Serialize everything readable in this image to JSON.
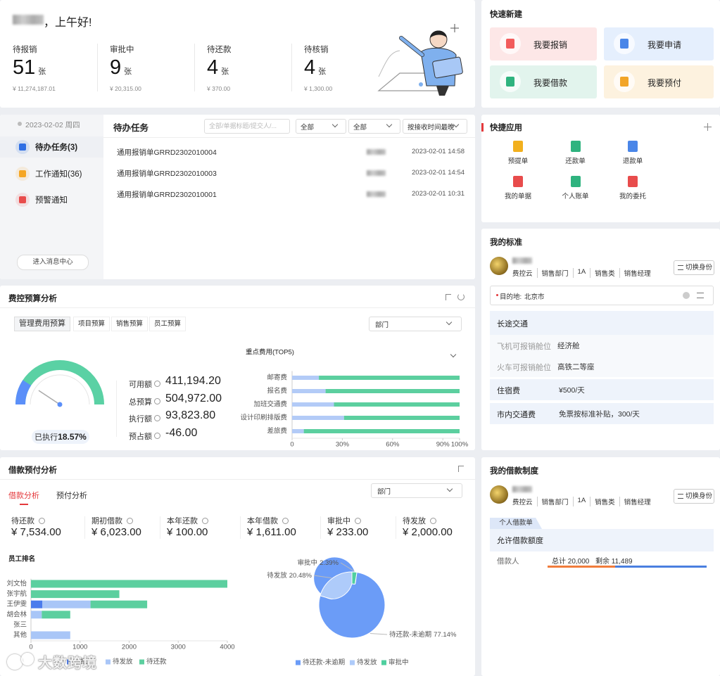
{
  "greeting": "，上午好!",
  "summary": [
    {
      "label": "待报销",
      "count": 51,
      "unit": "张",
      "amount": "¥ 11,274,187.01"
    },
    {
      "label": "审批中",
      "count": 9,
      "unit": "张",
      "amount": "¥ 20,315.00"
    },
    {
      "label": "待还款",
      "count": 4,
      "unit": "张",
      "amount": "¥ 370.00"
    },
    {
      "label": "待核销",
      "count": 4,
      "unit": "张",
      "amount": "¥ 1,300.00"
    }
  ],
  "quick_create": {
    "title": "快速新建",
    "items": [
      "我要报销",
      "我要申请",
      "我要借款",
      "我要预付"
    ]
  },
  "messages": {
    "date": "2023-02-02 周四",
    "tabs": [
      "待办任务(3)",
      "工作通知(36)",
      "预警通知"
    ],
    "button": "进入消息中心",
    "title": "待办任务",
    "search": "全部/单据标题/提交人/...",
    "filters": [
      "全部",
      "全部",
      "按接收时间最晚"
    ],
    "rows": [
      {
        "title": "通用报销单GRRD2302010004",
        "time": "2023-02-01 14:58"
      },
      {
        "title": "通用报销单GRRD2302010003",
        "time": "2023-02-01 14:54"
      },
      {
        "title": "通用报销单GRRD2302010001",
        "time": "2023-02-01 10:31"
      }
    ]
  },
  "quick_apps": {
    "title": "快捷应用",
    "items": [
      "预提单",
      "还款单",
      "退款单",
      "我的单据",
      "个人账单",
      "我的委托"
    ]
  },
  "standard": {
    "title": "我的标准",
    "tags": [
      "费控云",
      "销售部门",
      "1A",
      "销售类",
      "销售经理"
    ],
    "switch": "切换身份",
    "destination_label": "目的地:",
    "destination": "北京市",
    "rows": [
      [
        "长途交通"
      ],
      [
        "飞机可报销舱位",
        "经济舱"
      ],
      [
        "火车可报销舱位",
        "高铁二等座"
      ],
      [
        "住宿费",
        "¥500/天"
      ],
      [
        "市内交通费",
        "免票按标准补贴，300/天"
      ]
    ]
  },
  "budget": {
    "title": "费控预算分析",
    "tabs": [
      "管理费用预算",
      "项目预算",
      "销售预算",
      "员工预算"
    ],
    "select": "部门",
    "metrics": [
      {
        "label": "可用额",
        "value": "411,194.20"
      },
      {
        "label": "总预算",
        "value": "504,972.00"
      },
      {
        "label": "执行额",
        "value": "93,823.80"
      },
      {
        "label": "预占额",
        "value": "-46.00"
      }
    ]
  },
  "loan": {
    "title": "借款预付分析",
    "tabs": [
      "借款分析",
      "预付分析"
    ],
    "select": "部门",
    "metrics": [
      {
        "label": "待还款",
        "value": "¥ 7,534.00"
      },
      {
        "label": "期初借款",
        "value": "¥ 6,023.00"
      },
      {
        "label": "本年还款",
        "value": "¥ 100.00"
      },
      {
        "label": "本年借款",
        "value": "¥ 1,611.00"
      },
      {
        "label": "审批中",
        "value": "¥ 233.00"
      },
      {
        "label": "待发放",
        "value": "¥ 2,000.00"
      }
    ]
  },
  "loan_policy": {
    "title": "我的借款制度",
    "tags": [
      "费控云",
      "销售部门",
      "1A",
      "销售类",
      "销售经理"
    ],
    "switch": "切换身份",
    "tab": "个人借款单",
    "heading": "允许借款额度",
    "row_label": "借款人",
    "total": "总计 20,000",
    "remaining": "剩余 11,489"
  },
  "watermark": "大数跨境",
  "chart_data": [
    {
      "type": "gauge",
      "label": "已执行",
      "values": [
        18.57
      ],
      "value_labels": [
        "18.57%"
      ],
      "ylim": [
        0,
        100
      ],
      "color": "#5b8ff9",
      "track_color": "#5ad1a4"
    },
    {
      "type": "bar",
      "orientation": "horizontal",
      "stacked": true,
      "title": "重点费用(TOP5)",
      "categories": [
        "邮寄费",
        "报名费",
        "加班交通费",
        "设计印刷排版费",
        "差旅费"
      ],
      "series": [
        {
          "color": "#b3cbf7",
          "values": [
            16,
            20,
            25,
            31,
            7
          ]
        },
        {
          "color": "#5ccf9f",
          "values": [
            84,
            80,
            75,
            69,
            93
          ]
        }
      ],
      "xlim": [
        0,
        100
      ],
      "xticks": [
        0,
        {
          "value": 30,
          "label": "30%"
        },
        {
          "value": 60,
          "label": "60%"
        },
        {
          "value": 90,
          "label": "90%"
        },
        {
          "value": 100,
          "label": "100%"
        }
      ]
    },
    {
      "type": "bar",
      "orientation": "horizontal",
      "stacked": true,
      "title": "员工排名",
      "categories": [
        "刘文怡",
        "张宇航",
        "王伊雯",
        "胡会林",
        "张三",
        "其他"
      ],
      "series": [
        {
          "name": "审批中",
          "color": "#4b7bec",
          "values": [
            0,
            0,
            233,
            0,
            0,
            0
          ]
        },
        {
          "name": "待发放",
          "color": "#a9c6f7",
          "values": [
            0,
            0,
            980,
            220,
            0,
            800
          ]
        },
        {
          "name": "待还款",
          "color": "#5ccf9f",
          "values": [
            4000,
            1800,
            1154,
            580,
            0,
            0
          ]
        }
      ],
      "xlim": [
        0,
        4000
      ],
      "xticks": [
        0,
        1000,
        2000,
        3000,
        4000
      ]
    },
    {
      "type": "pie",
      "donut": true,
      "categories": [
        "待还款-未逾期",
        "待发放",
        "审批中"
      ],
      "values": [
        77.14,
        20.48,
        2.39
      ],
      "value_labels": [
        "77.14%",
        "20.48%",
        "2.39%"
      ],
      "colors": [
        "#6b9cf7",
        "#aecbfa",
        "#4fcf9f"
      ]
    }
  ]
}
